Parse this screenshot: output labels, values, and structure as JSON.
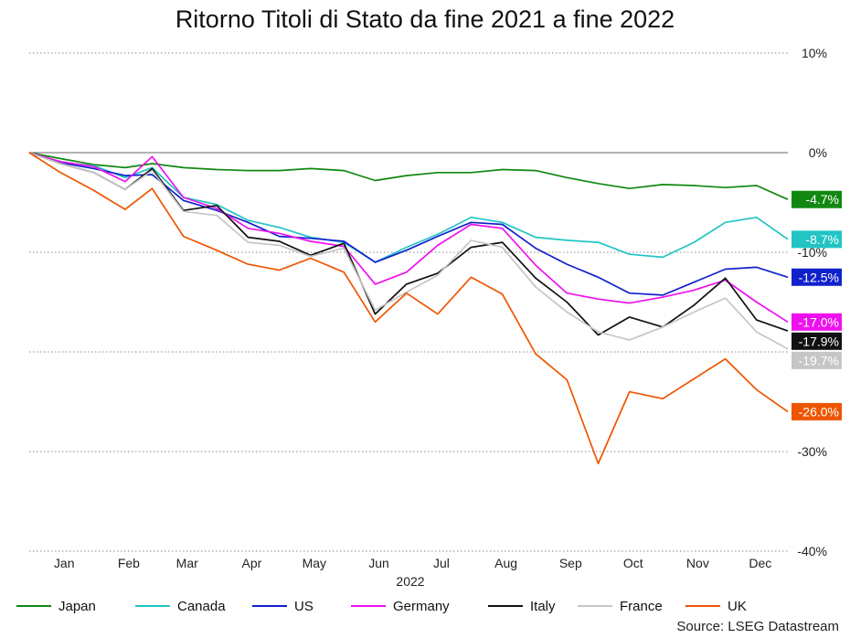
{
  "chart_data": {
    "type": "line",
    "title": "Ritorno Titoli di Stato da fine 2021 a fine 2022",
    "source": "Source: LSEG Datastream",
    "x_tick_labels": [
      "Jan",
      "Feb",
      "Mar",
      "Apr",
      "May",
      "Jun",
      "Jul",
      "Aug",
      "Sep",
      "Oct",
      "Nov",
      "Dec"
    ],
    "x_year_label": "2022",
    "x": [
      "2021-12-31",
      "2022-01-15",
      "2022-01-31",
      "2022-02-15",
      "2022-02-28",
      "2022-03-15",
      "2022-03-31",
      "2022-04-15",
      "2022-04-30",
      "2022-05-15",
      "2022-05-31",
      "2022-06-15",
      "2022-06-30",
      "2022-07-15",
      "2022-07-31",
      "2022-08-15",
      "2022-08-31",
      "2022-09-15",
      "2022-09-30",
      "2022-10-15",
      "2022-10-31",
      "2022-11-15",
      "2022-11-30",
      "2022-12-15",
      "2022-12-30"
    ],
    "ylim": [
      -40,
      10
    ],
    "y_ticks": [
      10,
      0,
      -10,
      -20,
      -30,
      -40
    ],
    "y_tick_labels": [
      "10%",
      "0%",
      "-10%",
      "",
      "-30%",
      "-40%"
    ],
    "grid": "horizontal dotted",
    "legend_position": "bottom",
    "series": [
      {
        "name": "Japan",
        "color": "#118811",
        "end_label": "-4.7%",
        "values": [
          0,
          -0.6,
          -1.2,
          -1.5,
          -1.1,
          -1.5,
          -1.7,
          -1.8,
          -1.8,
          -1.6,
          -1.8,
          -2.8,
          -2.3,
          -2.0,
          -2.0,
          -1.7,
          -1.8,
          -2.5,
          -3.1,
          -3.6,
          -3.2,
          -3.3,
          -3.5,
          -3.3,
          -4.7
        ]
      },
      {
        "name": "Canada",
        "color": "#22c4c4",
        "end_label": "-8.7%",
        "values": [
          0,
          -1.0,
          -1.3,
          -2.5,
          -1.5,
          -4.5,
          -5.2,
          -6.8,
          -7.5,
          -8.5,
          -9.0,
          -11.0,
          -9.5,
          -8.2,
          -6.5,
          -7.0,
          -8.5,
          -8.8,
          -9.0,
          -10.2,
          -10.5,
          -9.0,
          -7.0,
          -6.5,
          -8.7
        ]
      },
      {
        "name": "US",
        "color": "#1122cc",
        "end_label": "-12.5%",
        "values": [
          0,
          -1.0,
          -1.6,
          -2.3,
          -2.2,
          -4.8,
          -5.8,
          -7.0,
          -8.4,
          -8.6,
          -8.9,
          -11.0,
          -9.8,
          -8.4,
          -7.0,
          -7.2,
          -9.6,
          -11.2,
          -12.5,
          -14.1,
          -14.3,
          -13.0,
          -11.7,
          -11.5,
          -12.5
        ]
      },
      {
        "name": "Germany",
        "color": "#ee11ee",
        "end_label": "-17.0%",
        "values": [
          0,
          -0.9,
          -1.4,
          -2.9,
          -0.4,
          -4.5,
          -5.6,
          -7.6,
          -8.1,
          -8.9,
          -9.4,
          -13.2,
          -12.0,
          -9.3,
          -7.2,
          -7.6,
          -11.3,
          -14.1,
          -14.7,
          -15.1,
          -14.5,
          -13.8,
          -12.8,
          -15.0,
          -17.0
        ]
      },
      {
        "name": "Italy",
        "color": "#111111",
        "end_label": "-17.9%",
        "values": [
          0,
          -1.1,
          -2.0,
          -3.7,
          -1.6,
          -5.8,
          -5.3,
          -8.5,
          -8.9,
          -10.3,
          -9.1,
          -16.2,
          -13.2,
          -12.1,
          -9.5,
          -9.0,
          -12.6,
          -15.0,
          -18.3,
          -16.5,
          -17.5,
          -15.3,
          -12.6,
          -16.8,
          -17.9
        ]
      },
      {
        "name": "France",
        "color": "#c6c6c6",
        "end_label": "-19.7%",
        "values": [
          0,
          -1.1,
          -2.0,
          -3.7,
          -1.8,
          -5.9,
          -6.3,
          -9.0,
          -9.3,
          -10.4,
          -9.6,
          -15.8,
          -14.0,
          -12.3,
          -8.8,
          -9.5,
          -13.5,
          -16.0,
          -18.0,
          -18.8,
          -17.5,
          -16.0,
          -14.6,
          -18.0,
          -19.7
        ]
      },
      {
        "name": "UK",
        "color": "#ee5500",
        "end_label": "-26.0%",
        "values": [
          0,
          -2.0,
          -3.8,
          -5.7,
          -3.6,
          -8.4,
          -9.8,
          -11.2,
          -11.8,
          -10.6,
          -12.0,
          -17.0,
          -14.1,
          -16.2,
          -12.5,
          -14.2,
          -20.2,
          -22.8,
          -31.2,
          -24.0,
          -24.7,
          -22.7,
          -20.7,
          -23.8,
          -26.0
        ]
      }
    ]
  }
}
